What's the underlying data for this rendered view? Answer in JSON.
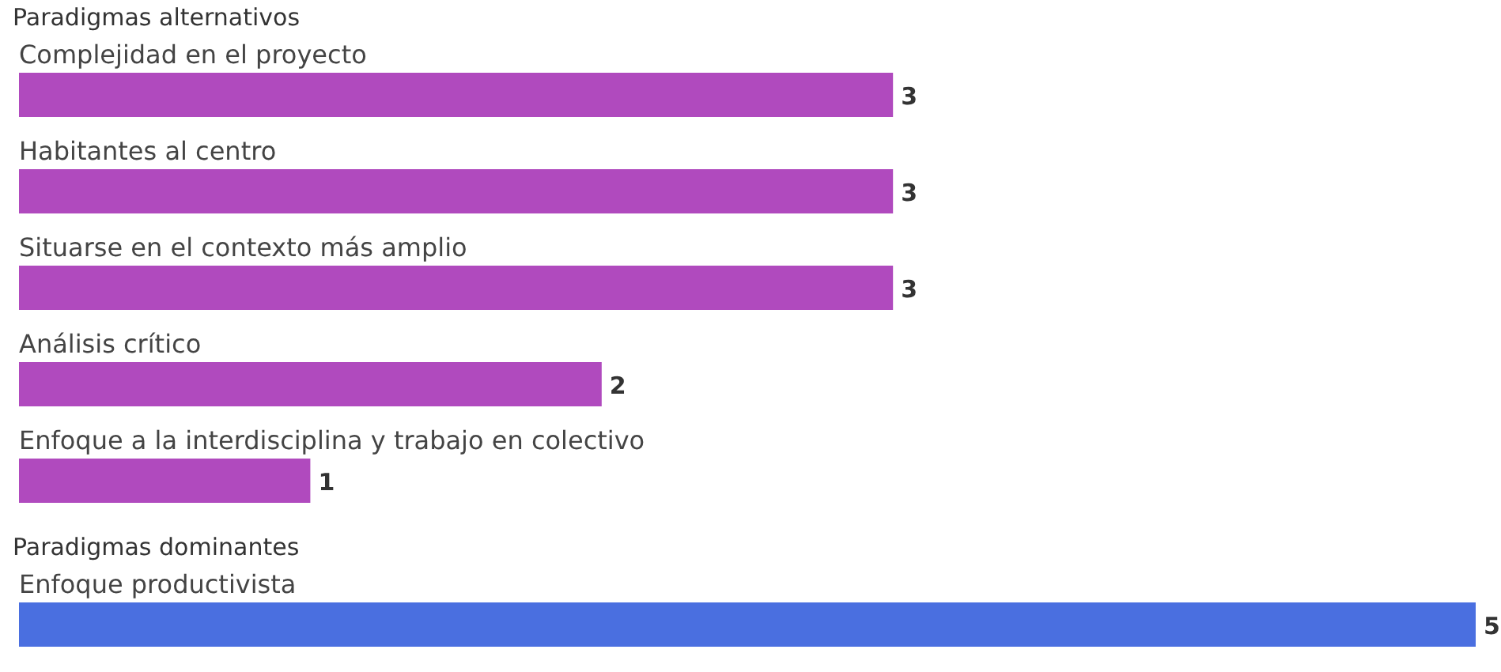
{
  "chart_data": [
    {
      "type": "bar",
      "orientation": "horizontal",
      "title": "Paradigmas alternativos",
      "categories": [
        "Complejidad en el proyecto",
        "Habitantes al centro",
        "Situarse en el contexto más amplio",
        "Análisis crítico",
        "Enfoque a la interdisciplina y trabajo en colectivo"
      ],
      "values": [
        3,
        3,
        3,
        2,
        1
      ],
      "color": "#b04abe",
      "data_labels": true
    },
    {
      "type": "bar",
      "orientation": "horizontal",
      "title": "Paradigmas dominantes",
      "categories": [
        "Enfoque productivista"
      ],
      "values": [
        5
      ],
      "color": "#4a6fe0",
      "data_labels": true
    }
  ]
}
